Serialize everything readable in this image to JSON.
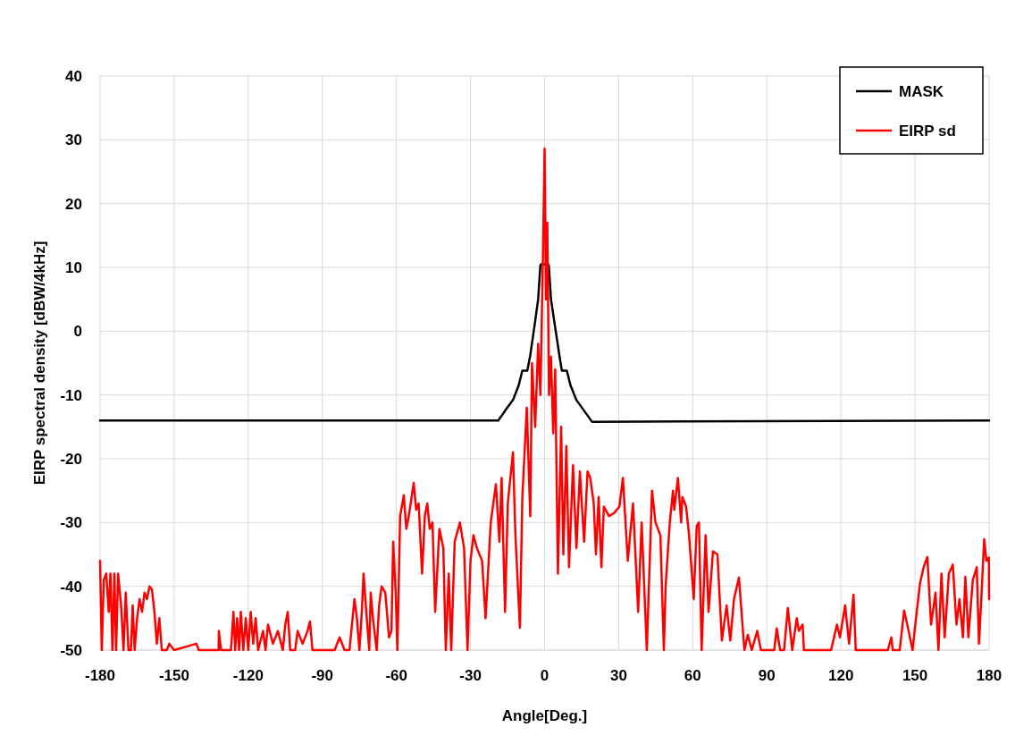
{
  "chart_data": {
    "type": "line",
    "xlabel": "Angle[Deg.]",
    "ylabel": "EIRP spectral density [dBW/4kHz]",
    "xlim": [
      -180,
      180
    ],
    "ylim": [
      -50,
      40
    ],
    "xticks": [
      -180,
      -150,
      -120,
      -90,
      -60,
      -30,
      0,
      30,
      60,
      90,
      120,
      150,
      180
    ],
    "yticks": [
      -50,
      -40,
      -30,
      -20,
      -10,
      0,
      10,
      20,
      30,
      40
    ],
    "grid": true,
    "legend": "top right",
    "series": [
      {
        "name": "MASK",
        "color": "#000000",
        "x": [
          -180,
          -18.75,
          -15.5,
          -12.8,
          -10.5,
          -9,
          -7,
          -5.8,
          -3.8,
          -2.6,
          -1.7,
          -1.4,
          1.4,
          1.7,
          2.6,
          3.9,
          6,
          7,
          9,
          10.5,
          12.9,
          15.5,
          19.2,
          180
        ],
        "values": [
          -14,
          -14,
          -12.2,
          -10.8,
          -8.5,
          -6.2,
          -6.2,
          -3.8,
          1.6,
          5,
          10.3,
          10.5,
          10.5,
          10.3,
          5,
          1.6,
          -3.8,
          -6.2,
          -6.2,
          -8.5,
          -10.8,
          -12.2,
          -14.2,
          -14
        ]
      },
      {
        "name": "EIRP sd",
        "color": "#ff0000",
        "x": [
          -180,
          -179.3,
          -178.5,
          -177.5,
          -176.5,
          -175.8,
          -175,
          -174.2,
          -173.5,
          -172.7,
          -171.5,
          -170.5,
          -169.6,
          -168.5,
          -167.5,
          -166.8,
          -166,
          -165,
          -164,
          -163,
          -162,
          -161,
          -160,
          -159,
          -158,
          -157,
          -156,
          -155,
          -153,
          -152,
          -150,
          -141,
          -140,
          -132,
          -131.9,
          -131,
          -127,
          -126,
          -125.3,
          -124.5,
          -123.7,
          -123,
          -122,
          -121,
          -120,
          -119,
          -118,
          -117,
          -116,
          -114,
          -113,
          -112,
          -110,
          -108,
          -106,
          -105,
          -104,
          -103,
          -101,
          -100,
          -98,
          -96,
          -95,
          -94,
          -85,
          -83,
          -81,
          -79,
          -78,
          -77,
          -76,
          -75,
          -74,
          -73.3,
          -72,
          -71,
          -70.4,
          -69.5,
          -68,
          -67,
          -66,
          -64.5,
          -63,
          -62,
          -61.3,
          -60.3,
          -59.6,
          -58.5,
          -57,
          -56,
          -55,
          -53,
          -52,
          -51,
          -49.6,
          -48.5,
          -47.5,
          -46.5,
          -45.4,
          -44.3,
          -42.6,
          -41,
          -40,
          -38.8,
          -37.8,
          -36.4,
          -34.3,
          -32.6,
          -31.2,
          -30,
          -28.8,
          -27.4,
          -25.3,
          -23.9,
          -21.8,
          -19.7,
          -18.3,
          -17.4,
          -16,
          -14.9,
          -12.8,
          -11.8,
          -10,
          -9,
          -7.2,
          -5.8,
          -5.1,
          -3.8,
          -2.6,
          -1.7,
          -0.7,
          0,
          0.6,
          1.1,
          1.8,
          2.6,
          3.5,
          4.3,
          5.4,
          6.7,
          7.6,
          8.8,
          9.9,
          11.5,
          12.9,
          14.3,
          16,
          17.4,
          18.5,
          19.9,
          20.8,
          21.9,
          23,
          24,
          26.1,
          28.2,
          30.3,
          31.7,
          33.7,
          35.8,
          37.9,
          39.3,
          41.4,
          43.5,
          44.9,
          46.9,
          48.3,
          49,
          50.7,
          52,
          52.5,
          54,
          55.3,
          55.8,
          57.3,
          58.5,
          60.4,
          61.6,
          62.5,
          63.6,
          65.2,
          66.4,
          68.2,
          70,
          71.8,
          73.7,
          75.2,
          76.7,
          78.7,
          80.9,
          82.3,
          83.9,
          86.1,
          87.6,
          93,
          94,
          95.4,
          97,
          98.5,
          100.3,
          102.1,
          103,
          104.5,
          105,
          116,
          116.6,
          118.4,
          119.6,
          121.7,
          123.3,
          125.1,
          126,
          139,
          140.4,
          141,
          143.8,
          145.6,
          147.4,
          149,
          150.4,
          152,
          153.5,
          155,
          156.5,
          158.3,
          159.5,
          160.7,
          162,
          163.7,
          165.3,
          166.8,
          168,
          169.4,
          170.4,
          171.6,
          173.4,
          175,
          175.9,
          177.1,
          178,
          178.9,
          179.9,
          180
        ],
        "values": [
          -36,
          -50,
          -39,
          -38,
          -44,
          -38,
          -50,
          -38,
          -50,
          -38,
          -43,
          -50,
          -41,
          -50,
          -50,
          -43,
          -50,
          -45,
          -42,
          -44,
          -41,
          -42,
          -40,
          -40.5,
          -44,
          -49,
          -45,
          -50,
          -50,
          -49,
          -50,
          -49,
          -50,
          -50,
          -47,
          -50,
          -50,
          -44,
          -50,
          -45,
          -50,
          -44,
          -50,
          -45,
          -50,
          -44,
          -49,
          -45,
          -50,
          -47,
          -50,
          -46,
          -49,
          -47,
          -50,
          -46,
          -44,
          -50,
          -50,
          -47,
          -49,
          -47,
          -45.5,
          -50,
          -50,
          -48,
          -50,
          -50,
          -46,
          -42,
          -45,
          -50,
          -44,
          -38,
          -45,
          -50,
          -41,
          -45,
          -50,
          -43,
          -40,
          -41,
          -48,
          -47,
          -33,
          -41,
          -50,
          -29,
          -25.7,
          -31,
          -29,
          -23.8,
          -28,
          -27,
          -38,
          -29,
          -27,
          -31,
          -30,
          -44,
          -31,
          -34,
          -50,
          -38,
          -50,
          -33,
          -30,
          -34,
          -50,
          -36,
          -32,
          -34,
          -36,
          -45,
          -30,
          -24,
          -33,
          -23,
          -44,
          -27,
          -19,
          -32,
          -46.5,
          -26,
          -12,
          -29,
          -5,
          -15,
          -2,
          -10,
          10.8,
          28.6,
          5,
          17,
          -10,
          -4,
          -16,
          -6,
          -38,
          -15,
          -35,
          -18,
          -37,
          -21,
          -34,
          -22,
          -33,
          -22,
          -23,
          -27,
          -35,
          -26,
          -37,
          -27.5,
          -29,
          -28.5,
          -27.5,
          -23,
          -36,
          -27,
          -44,
          -30,
          -50,
          -25,
          -30,
          -32,
          -50,
          -40,
          -30,
          -25,
          -28,
          -23,
          -30,
          -26,
          -27.5,
          -32,
          -42,
          -30.5,
          -30,
          -50,
          -32,
          -44,
          -34.5,
          -35,
          -48.5,
          -43,
          -48.5,
          -42,
          -38.6,
          -50,
          -47.6,
          -50,
          -47,
          -50,
          -50,
          -46.6,
          -50,
          -50,
          -43.4,
          -50,
          -45,
          -47,
          -46,
          -50,
          -50,
          -49,
          -46,
          -48,
          -43,
          -49,
          -41.3,
          -50,
          -50,
          -48,
          -50,
          -50,
          -43.8,
          -47,
          -50,
          -45,
          -39.6,
          -37,
          -35.4,
          -46,
          -41,
          -50,
          -38,
          -48,
          -38,
          -36.6,
          -46,
          -42,
          -48,
          -38.5,
          -48,
          -39,
          -37,
          -49,
          -40,
          -32.6,
          -36,
          -35.5,
          -42
        ]
      }
    ]
  }
}
